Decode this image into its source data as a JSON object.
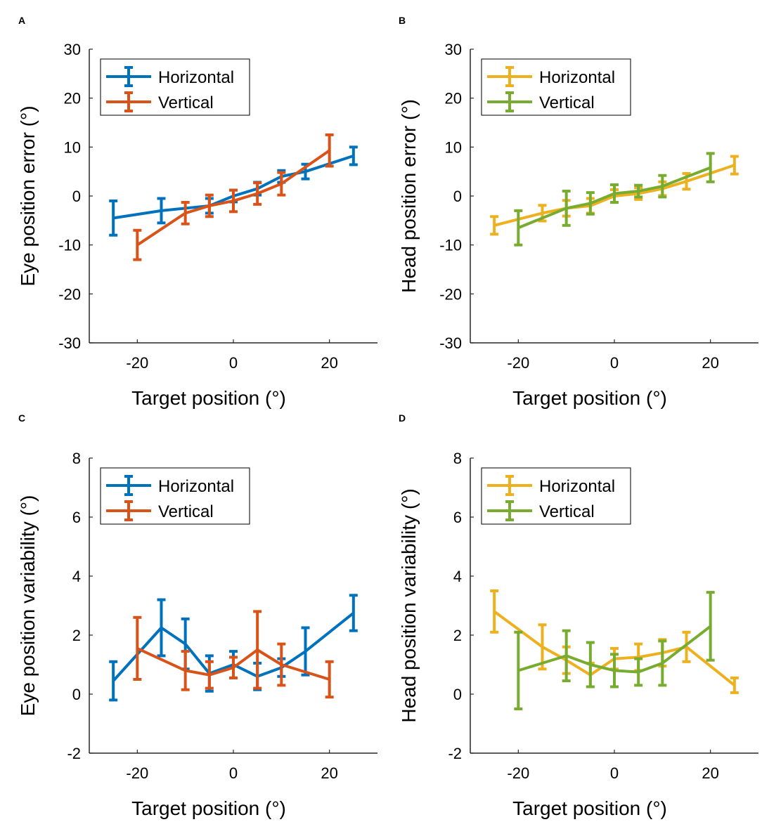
{
  "chart_data": [
    {
      "panel": "A",
      "type": "line",
      "xlabel": "Target position (°)",
      "ylabel": "Eye position error (°)",
      "xlim": [
        -30,
        30
      ],
      "ylim": [
        -30,
        30
      ],
      "xticks": [
        -20,
        0,
        20
      ],
      "yticks": [
        -30,
        -20,
        -10,
        0,
        10,
        20,
        30
      ],
      "legend_position": "top-left",
      "series": [
        {
          "name": "Horizontal",
          "color": "#0072BD",
          "x": [
            -25,
            -15,
            -5,
            0,
            5,
            10,
            15,
            25
          ],
          "y": [
            -4.5,
            -3,
            -2,
            0,
            1.5,
            4,
            5,
            8.2
          ],
          "err": [
            3.5,
            2.5,
            1.5,
            1.2,
            1.3,
            1.2,
            1.5,
            1.8
          ]
        },
        {
          "name": "Vertical",
          "color": "#D95319",
          "x": [
            -20,
            -10,
            -5,
            0,
            5,
            10,
            20
          ],
          "y": [
            -10,
            -3.5,
            -2,
            -1,
            0.5,
            2.5,
            9.3
          ],
          "err": [
            3,
            2.2,
            2.2,
            2.2,
            2.2,
            2.3,
            3.2
          ]
        }
      ]
    },
    {
      "panel": "B",
      "type": "line",
      "xlabel": "Target position (°)",
      "ylabel": "Head position error (°)",
      "xlim": [
        -30,
        30
      ],
      "ylim": [
        -30,
        30
      ],
      "xticks": [
        -20,
        0,
        20
      ],
      "yticks": [
        -30,
        -20,
        -10,
        0,
        10,
        20,
        30
      ],
      "legend_position": "top-left",
      "series": [
        {
          "name": "Horizontal",
          "color": "#EDB120",
          "x": [
            -25,
            -15,
            -10,
            -5,
            0,
            5,
            10,
            15,
            25
          ],
          "y": [
            -6,
            -3.5,
            -2.5,
            -2,
            0,
            0.5,
            1.5,
            3,
            6.3
          ],
          "err": [
            1.8,
            1.6,
            1.6,
            1.5,
            1.3,
            1.2,
            1.4,
            1.6,
            1.8
          ]
        },
        {
          "name": "Vertical",
          "color": "#77AC30",
          "x": [
            -20,
            -10,
            -5,
            0,
            5,
            10,
            20
          ],
          "y": [
            -6.5,
            -2.5,
            -1.5,
            0.5,
            1,
            2,
            5.8
          ],
          "err": [
            3.5,
            3.5,
            2.2,
            1.8,
            1.2,
            2.2,
            2.9
          ]
        }
      ]
    },
    {
      "panel": "C",
      "type": "line",
      "xlabel": "Target position (°)",
      "ylabel": "Eye position variability (°)",
      "xlim": [
        -30,
        30
      ],
      "ylim": [
        -2,
        8
      ],
      "xticks": [
        -20,
        0,
        20
      ],
      "yticks": [
        -2,
        0,
        2,
        4,
        6,
        8
      ],
      "legend_position": "top-left",
      "series": [
        {
          "name": "Horizontal",
          "color": "#0072BD",
          "x": [
            -25,
            -15,
            -10,
            -5,
            0,
            5,
            10,
            15,
            25
          ],
          "y": [
            0.45,
            2.25,
            1.7,
            0.7,
            1.0,
            0.6,
            0.9,
            1.45,
            2.75
          ],
          "err": [
            0.65,
            0.95,
            0.85,
            0.6,
            0.45,
            0.45,
            0.3,
            0.8,
            0.6
          ]
        },
        {
          "name": "Vertical",
          "color": "#D95319",
          "x": [
            -20,
            -10,
            -5,
            0,
            5,
            10,
            20
          ],
          "y": [
            1.55,
            0.8,
            0.65,
            0.9,
            1.5,
            1.0,
            0.5
          ],
          "err": [
            1.05,
            0.65,
            0.45,
            0.35,
            1.3,
            0.7,
            0.6
          ]
        }
      ]
    },
    {
      "panel": "D",
      "type": "line",
      "xlabel": "Target position (°)",
      "ylabel": "Head position variability (°)",
      "xlim": [
        -30,
        30
      ],
      "ylim": [
        -2,
        8
      ],
      "xticks": [
        -20,
        0,
        20
      ],
      "yticks": [
        -2,
        0,
        2,
        4,
        6,
        8
      ],
      "legend_position": "top-left",
      "series": [
        {
          "name": "Horizontal",
          "color": "#EDB120",
          "x": [
            -25,
            -15,
            -10,
            -5,
            0,
            5,
            10,
            15,
            25
          ],
          "y": [
            2.8,
            1.6,
            1.15,
            0.65,
            1.2,
            1.25,
            1.4,
            1.6,
            0.3
          ],
          "err": [
            0.7,
            0.75,
            0.45,
            0.4,
            0.35,
            0.45,
            0.45,
            0.5,
            0.25
          ]
        },
        {
          "name": "Vertical",
          "color": "#77AC30",
          "x": [
            -20,
            -10,
            -5,
            0,
            5,
            10,
            20
          ],
          "y": [
            0.8,
            1.3,
            1.0,
            0.8,
            0.75,
            1.05,
            2.3
          ],
          "err": [
            1.3,
            0.85,
            0.75,
            0.55,
            0.45,
            0.75,
            1.15
          ]
        }
      ]
    }
  ]
}
